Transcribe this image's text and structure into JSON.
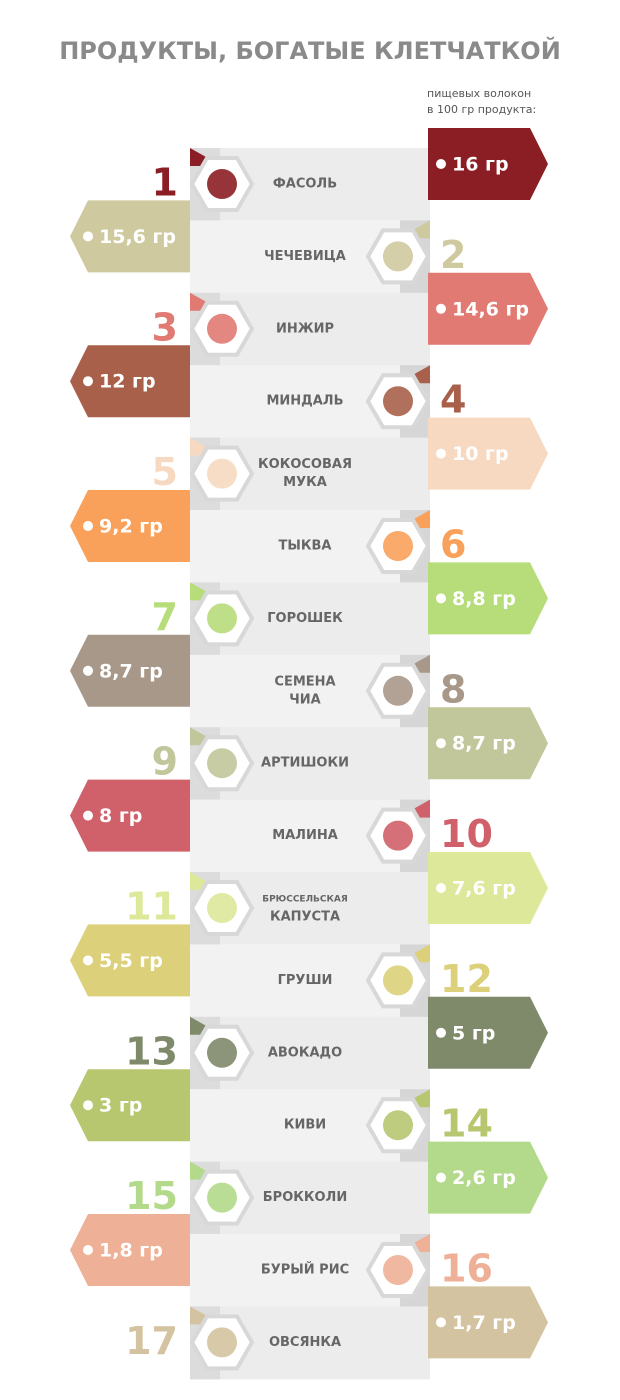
{
  "title": "ПРОДУКТЫ, БОГАТЫЕ КЛЕТЧАТКОЙ",
  "note": [
    "пищевых волокон",
    "в 100 гр продукта:"
  ],
  "items": [
    {
      "rank": "1",
      "name": [
        "ФАСОЛЬ"
      ],
      "amount": "16 гр",
      "color": "#8b1e24"
    },
    {
      "rank": "2",
      "name": [
        "ЧЕЧЕВИЦА"
      ],
      "amount": "15,6 гр",
      "color": "#cfc9a0"
    },
    {
      "rank": "3",
      "name": [
        "ИНЖИР"
      ],
      "amount": "14,6 гр",
      "color": "#e07a72"
    },
    {
      "rank": "4",
      "name": [
        "МИНДАЛЬ"
      ],
      "amount": "12 гр",
      "color": "#a8604a"
    },
    {
      "rank": "5",
      "name": [
        "КОКОСОВАЯ",
        "МУКА"
      ],
      "amount": "10 гр",
      "color": "#f6d9c0"
    },
    {
      "rank": "6",
      "name": [
        "ТЫКВА"
      ],
      "amount": "9,2 гр",
      "color": "#f9a15a"
    },
    {
      "rank": "7",
      "name": [
        "ГОРОШЕК"
      ],
      "amount": "8,8 гр",
      "color": "#b7dc7a"
    },
    {
      "rank": "8",
      "name": [
        "СЕМЕНА",
        "ЧИА"
      ],
      "amount": "8,7 гр",
      "color": "#a8988a"
    },
    {
      "rank": "9",
      "name": [
        "АРТИШОКИ"
      ],
      "amount": "8,7 гр",
      "color": "#c1c79a"
    },
    {
      "rank": "10",
      "name": [
        "МАЛИНА"
      ],
      "amount": "8 гр",
      "color": "#d0606a"
    },
    {
      "rank": "11",
      "name": [
        "БРЮССЕЛЬСКАЯ",
        "КАПУСТА"
      ],
      "amount": "7,6 гр",
      "color": "#dde89a"
    },
    {
      "rank": "12",
      "name": [
        "ГРУШИ"
      ],
      "amount": "5,5 гр",
      "color": "#dcd07a"
    },
    {
      "rank": "13",
      "name": [
        "АВОКАДО"
      ],
      "amount": "5 гр",
      "color": "#7f8a6a"
    },
    {
      "rank": "14",
      "name": [
        "КИВИ"
      ],
      "amount": "3 гр",
      "color": "#b6c770"
    },
    {
      "rank": "15",
      "name": [
        "БРОККОЛИ"
      ],
      "amount": "2,6 гр",
      "color": "#b3d98a"
    },
    {
      "rank": "16",
      "name": [
        "БУРЫЙ РИС"
      ],
      "amount": "1,8 гр",
      "color": "#eeb096"
    },
    {
      "rank": "17",
      "name": [
        "ОВСЯНКА"
      ],
      "amount": "1,7 гр",
      "color": "#d4c3a0"
    }
  ]
}
